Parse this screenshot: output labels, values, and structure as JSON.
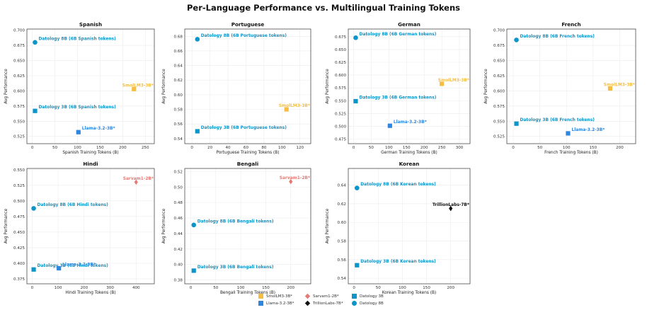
{
  "figure": {
    "title": "Per-Language Performance vs. Multilingual Training Tokens"
  },
  "colors": {
    "smollm": "#F5BE41",
    "sarvam": "#E87A75",
    "llama": "#2E86DE",
    "trillion": "#111111",
    "datology": "#0B95C9"
  },
  "chart_data": [
    {
      "type": "scatter",
      "title": "Spanish",
      "xlabel": "Spanish Training Tokens (B)",
      "ylabel": "Avg Performance",
      "xlim": [
        -12,
        270
      ],
      "ylim": [
        0.513,
        0.702
      ],
      "xticks": [
        0,
        50,
        100,
        150,
        200,
        250
      ],
      "yticks": [
        0.525,
        0.55,
        0.575,
        0.6,
        0.625,
        0.65,
        0.675,
        0.7
      ],
      "yticklabels": [
        "0.525",
        "0.550",
        "0.575",
        "0.600",
        "0.625",
        "0.650",
        "0.675",
        "0.700"
      ],
      "points": [
        {
          "model": "Datology 8B",
          "label": "Datology 8B (6B Spanish tokens)",
          "x": 6,
          "y": 0.68,
          "marker": "circle",
          "color": "datology"
        },
        {
          "model": "Datology 3B",
          "label": "Datology 3B (6B Spanish tokens)",
          "x": 6,
          "y": 0.567,
          "marker": "square",
          "color": "datology"
        },
        {
          "model": "SmolLM3-3B*",
          "label": "SmolLM3-3B*",
          "x": 225,
          "y": 0.603,
          "marker": "square",
          "color": "smollm"
        },
        {
          "model": "Llama-3.2-3B*",
          "label": "Llama-3.2-3B*",
          "x": 102,
          "y": 0.532,
          "marker": "square",
          "color": "llama"
        }
      ]
    },
    {
      "type": "scatter",
      "title": "Portuguese",
      "xlabel": "Portuguese Training Tokens (B)",
      "ylabel": "Avg Performance",
      "xlim": [
        -8,
        132
      ],
      "ylim": [
        0.533,
        0.69
      ],
      "xticks": [
        0,
        20,
        40,
        60,
        80,
        100,
        120
      ],
      "yticks": [
        0.54,
        0.56,
        0.58,
        0.6,
        0.62,
        0.64,
        0.66,
        0.68
      ],
      "yticklabels": [
        "0.54",
        "0.56",
        "0.58",
        "0.60",
        "0.62",
        "0.64",
        "0.66",
        "0.68"
      ],
      "points": [
        {
          "model": "Datology 8B",
          "label": "Datology 8B (6B Portuguese tokens)",
          "x": 6,
          "y": 0.676,
          "marker": "circle",
          "color": "datology"
        },
        {
          "model": "Datology 3B",
          "label": "Datology 3B (6B Portuguese tokens)",
          "x": 6,
          "y": 0.55,
          "marker": "square",
          "color": "datology"
        },
        {
          "model": "SmolLM3-3B*",
          "label": "SmolLM3-3B*",
          "x": 105,
          "y": 0.58,
          "marker": "square",
          "color": "smollm"
        }
      ]
    },
    {
      "type": "scatter",
      "title": "German",
      "xlabel": "German Training Tokens (B)",
      "ylabel": "Avg Performance",
      "xlim": [
        -15,
        330
      ],
      "ylim": [
        0.466,
        0.69
      ],
      "xticks": [
        0,
        50,
        100,
        150,
        200,
        250,
        300
      ],
      "yticks": [
        0.475,
        0.5,
        0.525,
        0.55,
        0.575,
        0.6,
        0.625,
        0.65,
        0.675
      ],
      "yticklabels": [
        "0.475",
        "0.500",
        "0.525",
        "0.550",
        "0.575",
        "0.600",
        "0.625",
        "0.650",
        "0.675"
      ],
      "points": [
        {
          "model": "Datology 8B",
          "label": "Datology 8B (6B German tokens)",
          "x": 6,
          "y": 0.673,
          "marker": "circle",
          "color": "datology"
        },
        {
          "model": "Datology 3B",
          "label": "Datology 3B (6B German tokens)",
          "x": 6,
          "y": 0.549,
          "marker": "square",
          "color": "datology"
        },
        {
          "model": "SmolLM3-3B*",
          "label": "SmolLM3-3B*",
          "x": 250,
          "y": 0.583,
          "marker": "square",
          "color": "smollm"
        },
        {
          "model": "Llama-3.2-3B*",
          "label": "Llama-3.2-3B*",
          "x": 103,
          "y": 0.501,
          "marker": "square",
          "color": "llama"
        }
      ]
    },
    {
      "type": "scatter",
      "title": "French",
      "xlabel": "French Training Tokens (B)",
      "ylabel": "Avg Performance",
      "xlim": [
        -12,
        230
      ],
      "ylim": [
        0.513,
        0.702
      ],
      "xticks": [
        0,
        50,
        100,
        150,
        200
      ],
      "yticks": [
        0.525,
        0.55,
        0.575,
        0.6,
        0.625,
        0.65,
        0.675,
        0.7
      ],
      "yticklabels": [
        "0.525",
        "0.550",
        "0.575",
        "0.600",
        "0.625",
        "0.650",
        "0.675",
        "0.700"
      ],
      "points": [
        {
          "model": "Datology 8B",
          "label": "Datology 8B (6B French tokens)",
          "x": 6,
          "y": 0.684,
          "marker": "circle",
          "color": "datology"
        },
        {
          "model": "Datology 3B",
          "label": "Datology 3B (6B French tokens)",
          "x": 6,
          "y": 0.546,
          "marker": "square",
          "color": "datology"
        },
        {
          "model": "SmolLM3-3B*",
          "label": "SmolLM3-3B*",
          "x": 182,
          "y": 0.604,
          "marker": "square",
          "color": "smollm"
        },
        {
          "model": "Llama-3.2-3B*",
          "label": "Llama-3.2-3B*",
          "x": 103,
          "y": 0.53,
          "marker": "square",
          "color": "llama"
        }
      ]
    },
    {
      "type": "scatter",
      "title": "Hindi",
      "xlabel": "Hindi Training Tokens (B)",
      "ylabel": "Avg Performance",
      "xlim": [
        -20,
        470
      ],
      "ylim": [
        0.367,
        0.552
      ],
      "xticks": [
        0,
        100,
        200,
        300,
        400
      ],
      "yticks": [
        0.375,
        0.4,
        0.425,
        0.45,
        0.475,
        0.5,
        0.525,
        0.55
      ],
      "yticklabels": [
        "0.375",
        "0.400",
        "0.425",
        "0.450",
        "0.475",
        "0.500",
        "0.525",
        "0.550"
      ],
      "points": [
        {
          "model": "Datology 8B",
          "label": "Datology 8B (6B Hindi tokens)",
          "x": 6,
          "y": 0.488,
          "marker": "circle",
          "color": "datology"
        },
        {
          "model": "Datology 3B",
          "label": "Datology 3B (6B Hindi tokens)",
          "x": 6,
          "y": 0.39,
          "marker": "square",
          "color": "datology"
        },
        {
          "model": "Sarvam1-2B*",
          "label": "Sarvam1-2B*",
          "x": 400,
          "y": 0.53,
          "marker": "diamond",
          "color": "sarvam"
        },
        {
          "model": "Llama-3.2-3B*",
          "label": "Llama-3.2-3B*",
          "x": 103,
          "y": 0.392,
          "marker": "square",
          "color": "llama"
        }
      ]
    },
    {
      "type": "scatter",
      "title": "Bengali",
      "xlabel": "Bengali Training Tokens (B)",
      "ylabel": "Avg Performance",
      "xlim": [
        -12,
        240
      ],
      "ylim": [
        0.375,
        0.524
      ],
      "xticks": [
        0,
        50,
        100,
        150,
        200
      ],
      "yticks": [
        0.38,
        0.4,
        0.42,
        0.44,
        0.46,
        0.48,
        0.5,
        0.52
      ],
      "yticklabels": [
        "0.38",
        "0.40",
        "0.42",
        "0.44",
        "0.46",
        "0.48",
        "0.50",
        "0.52"
      ],
      "points": [
        {
          "model": "Datology 8B",
          "label": "Datology 8B (6B Bengali tokens)",
          "x": 6,
          "y": 0.451,
          "marker": "circle",
          "color": "datology"
        },
        {
          "model": "Datology 3B",
          "label": "Datology 3B (6B Bengali tokens)",
          "x": 6,
          "y": 0.392,
          "marker": "square",
          "color": "datology"
        },
        {
          "model": "Sarvam1-2B*",
          "label": "Sarvam1-2B*",
          "x": 200,
          "y": 0.507,
          "marker": "diamond",
          "color": "sarvam"
        }
      ]
    },
    {
      "type": "scatter",
      "title": "Korean",
      "xlabel": "Korean Training Tokens (B)",
      "ylabel": "Avg Performance",
      "xlim": [
        -12,
        240
      ],
      "ylim": [
        0.534,
        0.658
      ],
      "xticks": [
        0,
        50,
        100,
        150,
        200
      ],
      "yticks": [
        0.54,
        0.56,
        0.58,
        0.6,
        0.62,
        0.64
      ],
      "yticklabels": [
        "0.54",
        "0.56",
        "0.58",
        "0.60",
        "0.62",
        "0.64"
      ],
      "points": [
        {
          "model": "Datology 8B",
          "label": "Datology 8B (6B Korean tokens)",
          "x": 6,
          "y": 0.637,
          "marker": "circle",
          "color": "datology"
        },
        {
          "model": "Datology 3B",
          "label": "Datology 3B (6B Korean tokens)",
          "x": 6,
          "y": 0.554,
          "marker": "square",
          "color": "datology"
        },
        {
          "model": "TrillionLabs-7B*",
          "label": "TrillionLabs-7B*",
          "x": 200,
          "y": 0.615,
          "marker": "diamond",
          "color": "trillion"
        }
      ]
    }
  ],
  "legend": {
    "placement": "bottom-center",
    "items": [
      {
        "label": "SmolLM3-3B*",
        "marker": "square",
        "color": "smollm"
      },
      {
        "label": "Sarvam1-2B*",
        "marker": "diamond",
        "color": "sarvam"
      },
      {
        "label": "Datology 3B",
        "marker": "square",
        "color": "datology"
      },
      {
        "label": "Llama-3.2-3B*",
        "marker": "square",
        "color": "llama"
      },
      {
        "label": "TrillionLabs-7B*",
        "marker": "diamond",
        "color": "trillion"
      },
      {
        "label": "Datology 8B",
        "marker": "circle",
        "color": "datology"
      }
    ]
  }
}
